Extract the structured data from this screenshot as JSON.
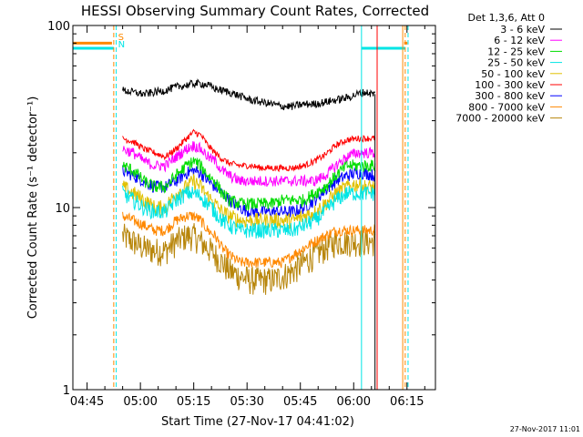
{
  "chart_data": {
    "type": "line",
    "title": "HESSI Observing Summary Count Rates, Corrected",
    "xlabel": "Start Time (27-Nov-17 04:41:02)",
    "ylabel": "Corrected Count Rate (s⁻¹ detector⁻¹)",
    "footer_stamp": "27-Nov-2017 11:01",
    "x_unit": "minutes since 04:41:02",
    "xlim": [
      0,
      102
    ],
    "ylim": [
      1,
      100
    ],
    "y_scale": "log",
    "x_ticks": [
      {
        "value": 4,
        "label": "04:45"
      },
      {
        "value": 19,
        "label": "05:00"
      },
      {
        "value": 34,
        "label": "05:15"
      },
      {
        "value": 49,
        "label": "05:30"
      },
      {
        "value": 64,
        "label": "05:45"
      },
      {
        "value": 79,
        "label": "06:00"
      },
      {
        "value": 94,
        "label": "06:15"
      }
    ],
    "y_ticks": [
      {
        "value": 1,
        "label": "1"
      },
      {
        "value": 10,
        "label": "10"
      },
      {
        "value": 100,
        "label": "100"
      }
    ],
    "legend": {
      "header": "Det 1,3,6, Att 0",
      "placement": "outside-right"
    },
    "time_x": [
      14,
      17,
      20,
      23,
      26,
      29,
      32,
      34,
      36,
      38,
      40,
      42,
      44,
      47,
      50,
      53,
      56,
      59,
      62,
      65,
      68,
      71,
      74,
      77,
      80,
      82,
      85
    ],
    "series": [
      {
        "name": "3 - 6 keV",
        "color": "#000000",
        "jitter": 0.05,
        "values": [
          44,
          43,
          42,
          43,
          44,
          46,
          47,
          48,
          48,
          47,
          45,
          44,
          43,
          41,
          39,
          38,
          37,
          36,
          36,
          37,
          37,
          38,
          39,
          40,
          42,
          43,
          42
        ]
      },
      {
        "name": "6 - 12 keV",
        "color": "#ff00ff",
        "jitter": 0.07,
        "values": [
          21,
          20,
          18,
          17,
          17,
          19,
          21,
          22,
          21,
          19,
          18,
          16,
          15,
          14,
          14,
          14,
          14,
          14,
          14,
          14,
          14,
          15,
          17,
          19,
          20,
          20,
          20
        ]
      },
      {
        "name": "12 - 25 keV",
        "color": "#00dd00",
        "jitter": 0.08,
        "values": [
          17,
          16,
          14,
          13,
          13,
          15,
          17,
          18,
          17,
          15,
          14,
          12,
          11,
          10.5,
          10.5,
          10.5,
          10.5,
          11,
          11,
          11,
          12,
          13,
          15,
          17,
          17,
          17,
          17
        ]
      },
      {
        "name": "25 - 50 keV",
        "color": "#00e5e5",
        "jitter": 0.1,
        "values": [
          12,
          11,
          10,
          9.5,
          9.5,
          11,
          12,
          12,
          11.5,
          10.5,
          9.5,
          8.5,
          8,
          7.5,
          7.5,
          7.5,
          7.5,
          7.5,
          7.5,
          8,
          8.5,
          9.5,
          11,
          12,
          12,
          12,
          12
        ]
      },
      {
        "name": "50 - 100 keV",
        "color": "#e0c000",
        "jitter": 0.1,
        "values": [
          13,
          12,
          11,
          10,
          10,
          12,
          13,
          14,
          13,
          11.5,
          10.5,
          9.5,
          9,
          8.5,
          8.5,
          8.5,
          8.5,
          8.5,
          8.5,
          9,
          9.5,
          10.5,
          12,
          13,
          13.5,
          13,
          13
        ]
      },
      {
        "name": "100 - 300 keV",
        "color": "#ff0000",
        "jitter": 0.04,
        "values": [
          24,
          23,
          21,
          20,
          19,
          21,
          24,
          26,
          25,
          22,
          20,
          18.5,
          17.5,
          17,
          17,
          16.5,
          16.5,
          16.5,
          16.5,
          17,
          18,
          19.5,
          22,
          23.5,
          24,
          24,
          24
        ]
      },
      {
        "name": "300 - 800 keV",
        "color": "#0000ff",
        "jitter": 0.08,
        "values": [
          16,
          15,
          14,
          13,
          13,
          14,
          15.5,
          16,
          15.5,
          14,
          13,
          12,
          11,
          10,
          9.5,
          9.5,
          9.5,
          9.5,
          9.5,
          10,
          11,
          12.5,
          14,
          15,
          15.5,
          15.5,
          15
        ]
      },
      {
        "name": "800 - 7000 keV",
        "color": "#ff8800",
        "jitter": 0.07,
        "values": [
          9,
          8.5,
          8,
          7.5,
          7.5,
          8.5,
          9,
          9,
          8.5,
          7.5,
          7,
          6,
          5.5,
          5,
          5,
          5,
          5,
          5,
          5.5,
          6,
          6.5,
          7,
          7.5,
          7.5,
          7.5,
          7.5,
          7.5
        ]
      },
      {
        "name": "7000 - 20000 keV",
        "color": "#b8860b",
        "jitter": 0.18,
        "values": [
          7,
          6.5,
          6,
          5.8,
          5.8,
          6.5,
          7,
          7,
          6.5,
          6,
          5.5,
          5,
          4.5,
          4.2,
          4,
          4,
          4,
          4.2,
          4.5,
          5,
          5.5,
          6,
          6.5,
          6.5,
          6.5,
          6.5,
          6.5
        ]
      }
    ],
    "markers": [
      {
        "kind": "orange-solid",
        "color": "#ff8800",
        "dash": false,
        "x": [
          0,
          11,
          93.2
        ],
        "y": [
          80,
          80,
          80
        ]
      },
      {
        "kind": "cyan-solid",
        "color": "#00e5e5",
        "dash": false,
        "x": [
          0,
          11.5,
          81.2,
          93.5
        ],
        "y": [
          75,
          75,
          75,
          75
        ]
      },
      {
        "kind": "orange-dashed",
        "color": "#ff8800",
        "dash": true,
        "x": [
          11.5,
          93.5
        ],
        "y": []
      },
      {
        "kind": "cyan-dashed",
        "color": "#00e5e5",
        "dash": true,
        "x": [
          12.2,
          94.3
        ],
        "y": []
      },
      {
        "kind": "cyan-vertical",
        "color": "#00e5e5",
        "dash": false,
        "x": [
          0,
          81.2
        ],
        "y": []
      },
      {
        "kind": "red-vertical",
        "color": "#ff0000",
        "dash": false,
        "x": [
          85.6
        ],
        "y": []
      },
      {
        "kind": "orange-vertical",
        "color": "#ff8800",
        "dash": false,
        "x": [
          92.8
        ],
        "y": []
      }
    ],
    "marker_labels": [
      {
        "text": "S",
        "color": "#ff8800"
      },
      {
        "text": "N",
        "color": "#00e5e5"
      }
    ]
  }
}
